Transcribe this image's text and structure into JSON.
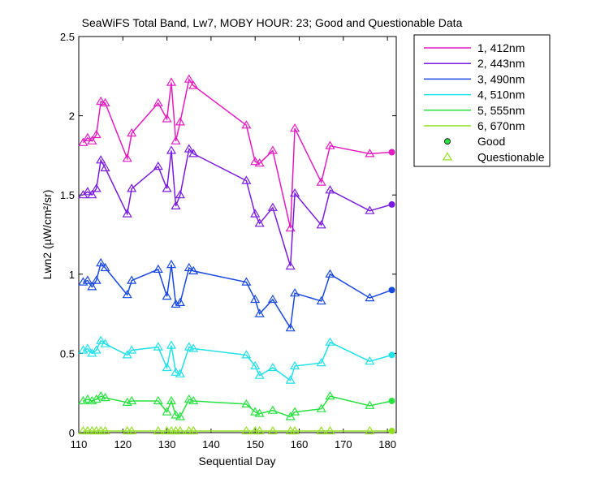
{
  "chart_data": {
    "type": "line",
    "title": "SeaWiFS Total Band, Lw7, MOBY HOUR: 23;  Good and Questionable Data",
    "xlabel": "Sequential Day",
    "ylabel": "Lwn2 (µW/cm²/sr)",
    "xlim": [
      110,
      182
    ],
    "ylim": [
      0,
      2.5
    ],
    "xticks": [
      "110",
      "120",
      "130",
      "140",
      "150",
      "160",
      "170",
      "180"
    ],
    "yticks": [
      "0",
      "0.5",
      "1",
      "1.5",
      "2",
      "2.5"
    ],
    "grid": false,
    "legend_position": "outside-right",
    "x": [
      111,
      112,
      113,
      114,
      115,
      116,
      121,
      122,
      128,
      130,
      131,
      132,
      133,
      135,
      136,
      148,
      150,
      151,
      154,
      158,
      159,
      165,
      167,
      176,
      181
    ],
    "series": [
      {
        "name": "1, 412nm",
        "color": "#e31cc0",
        "values": [
          1.83,
          1.86,
          1.84,
          1.88,
          2.09,
          2.08,
          1.73,
          1.89,
          2.08,
          1.98,
          2.21,
          1.84,
          1.96,
          2.23,
          2.19,
          1.94,
          1.71,
          1.7,
          1.78,
          1.29,
          1.92,
          1.58,
          1.81,
          1.76,
          1.77
        ]
      },
      {
        "name": "2, 443nm",
        "color": "#7a1ce0",
        "values": [
          1.5,
          1.52,
          1.5,
          1.54,
          1.72,
          1.67,
          1.38,
          1.54,
          1.68,
          1.54,
          1.78,
          1.43,
          1.5,
          1.79,
          1.76,
          1.59,
          1.38,
          1.32,
          1.42,
          1.05,
          1.51,
          1.31,
          1.53,
          1.4,
          1.44
        ]
      },
      {
        "name": "3, 490nm",
        "color": "#1848e0",
        "values": [
          0.95,
          0.96,
          0.92,
          0.96,
          1.07,
          1.04,
          0.87,
          0.96,
          1.03,
          0.86,
          1.06,
          0.81,
          0.82,
          1.04,
          1.02,
          0.95,
          0.84,
          0.75,
          0.84,
          0.66,
          0.88,
          0.83,
          1.0,
          0.85,
          0.9
        ]
      },
      {
        "name": "4, 510nm",
        "color": "#20e0e8",
        "values": [
          0.52,
          0.53,
          0.5,
          0.52,
          0.58,
          0.56,
          0.49,
          0.52,
          0.54,
          0.41,
          0.55,
          0.38,
          0.37,
          0.54,
          0.53,
          0.49,
          0.42,
          0.36,
          0.41,
          0.33,
          0.42,
          0.44,
          0.57,
          0.45,
          0.49
        ]
      },
      {
        "name": "5, 555nm",
        "color": "#28e040",
        "values": [
          0.2,
          0.21,
          0.2,
          0.21,
          0.23,
          0.22,
          0.19,
          0.2,
          0.2,
          0.13,
          0.2,
          0.11,
          0.1,
          0.21,
          0.2,
          0.18,
          0.13,
          0.12,
          0.14,
          0.1,
          0.13,
          0.15,
          0.23,
          0.17,
          0.2
        ]
      },
      {
        "name": "6, 670nm",
        "color": "#90e020",
        "values": [
          0.01,
          0.01,
          0.01,
          0.01,
          0.01,
          0.01,
          0.01,
          0.01,
          0.01,
          0.01,
          0.01,
          0.01,
          0.01,
          0.01,
          0.01,
          0.01,
          0.01,
          0.01,
          0.01,
          0.01,
          0.01,
          0.01,
          0.01,
          0.01,
          0.01
        ]
      }
    ],
    "marker_quality": [
      "Questionable",
      "Questionable",
      "Questionable",
      "Questionable",
      "Questionable",
      "Questionable",
      "Questionable",
      "Questionable",
      "Questionable",
      "Questionable",
      "Questionable",
      "Questionable",
      "Questionable",
      "Questionable",
      "Questionable",
      "Questionable",
      "Questionable",
      "Questionable",
      "Questionable",
      "Questionable",
      "Questionable",
      "Questionable",
      "Questionable",
      "Questionable",
      "Good"
    ],
    "legend_markers": [
      {
        "label": "Good",
        "symbol": "filled-circle",
        "color": "#28e040"
      },
      {
        "label": "Questionable",
        "symbol": "open-triangle",
        "color": "#90e020"
      }
    ]
  }
}
